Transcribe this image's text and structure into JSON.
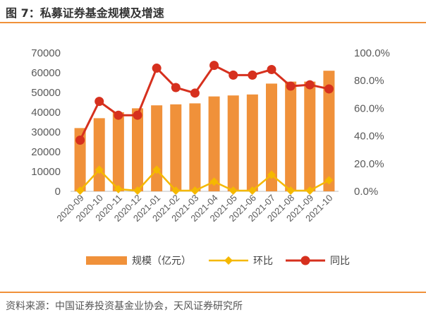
{
  "figure_title": "图 7：私募证券基金规模及增速",
  "source_note": "资料来源：中国证券投资基金业协会，天风证券研究所",
  "colors": {
    "bar": "#f0913a",
    "mom": "#f5b800",
    "yoy": "#d6301e",
    "rule": "#f0913a"
  },
  "chart_data": {
    "type": "bar",
    "title": "",
    "xlabel": "",
    "ylabel": "",
    "categories": [
      "2020-09",
      "2020-10",
      "2020-11",
      "2020-12",
      "2021-01",
      "2021-02",
      "2021-03",
      "2021-04",
      "2021-05",
      "2021-06",
      "2021-07",
      "2021-08",
      "2021-09",
      "2021-10"
    ],
    "series": [
      {
        "name": "规模（亿元）",
        "type": "bar",
        "axis": "left",
        "values": [
          32000,
          37000,
          40000,
          42000,
          43500,
          44000,
          44500,
          48000,
          48500,
          49000,
          54500,
          55500,
          55500,
          61000
        ]
      },
      {
        "name": "环比",
        "type": "line",
        "axis": "right",
        "values": [
          0.5,
          15.6,
          1.6,
          0.5,
          15.6,
          0.5,
          0.5,
          7.0,
          0.5,
          0.5,
          12.0,
          0.5,
          0.5,
          8.0
        ]
      },
      {
        "name": "同比",
        "type": "line",
        "axis": "right",
        "values": [
          37,
          65,
          55,
          55,
          89,
          75,
          71,
          91,
          84,
          84,
          88,
          76,
          77,
          74
        ]
      }
    ],
    "ylim": [
      0,
      70000
    ],
    "y2lim": [
      0,
      100
    ],
    "yticks": [
      "0",
      "10000",
      "20000",
      "30000",
      "40000",
      "50000",
      "60000",
      "70000"
    ],
    "y2ticks": [
      "0.0%",
      "20.0%",
      "40.0%",
      "60.0%",
      "80.0%",
      "100.0%"
    ],
    "legend_position": "bottom"
  }
}
